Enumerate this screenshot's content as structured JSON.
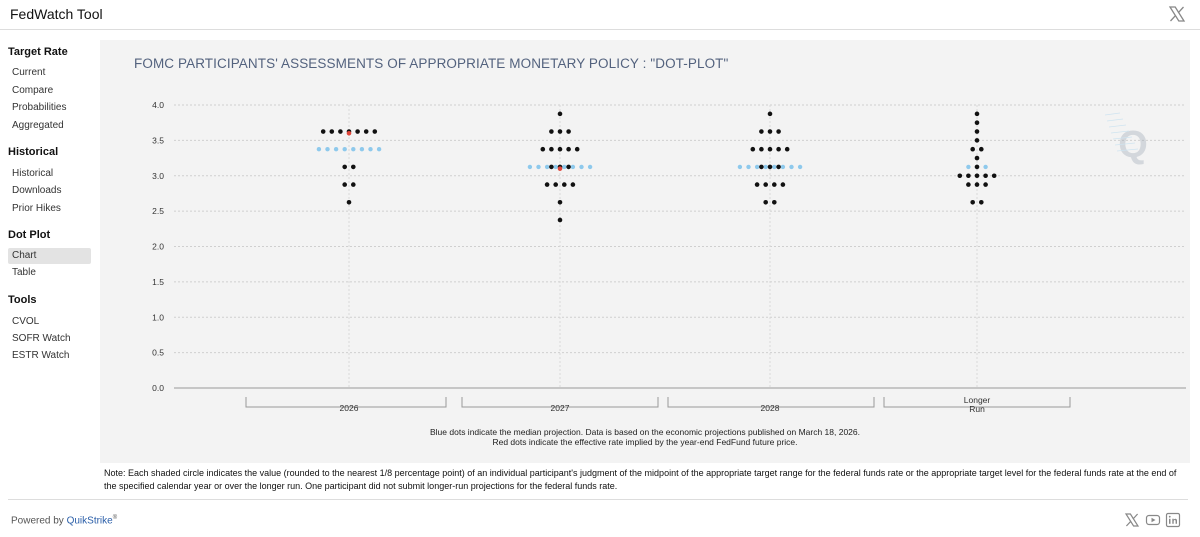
{
  "app": {
    "title": "FedWatch Tool"
  },
  "sidebar": {
    "sections": [
      {
        "heading": "Target Rate",
        "items": [
          "Current",
          "Compare",
          "Probabilities",
          "Aggregated"
        ]
      },
      {
        "heading": "Historical",
        "items": [
          "Historical",
          "Downloads",
          "Prior Hikes"
        ]
      },
      {
        "heading": "Dot Plot",
        "items": [
          "Chart",
          "Table"
        ]
      },
      {
        "heading": "Tools",
        "items": [
          "CVOL",
          "SOFR Watch",
          "ESTR Watch"
        ]
      }
    ],
    "active_item": "Chart"
  },
  "chart": {
    "caption_line1": "Blue dots indicate the median projection. Data is based on the economic projections published on March 18, 2026.",
    "caption_line2": "Red dots indicate the effective rate implied by the year-end FedFund future price."
  },
  "chart_data": {
    "type": "scatter",
    "title": "FOMC PARTICIPANTS' ASSESSMENTS OF APPROPRIATE MONETARY POLICY : \"DOT-PLOT\"",
    "categories": [
      "2026",
      "2027",
      "2028",
      "Longer Run"
    ],
    "ylim": [
      0,
      4
    ],
    "yticks": [
      "0.0",
      "0.5",
      "1.0",
      "1.5",
      "2.0",
      "2.5",
      "3.0",
      "3.5",
      "4.0"
    ],
    "grid": true,
    "participant_dots": [
      {
        "category": "2026",
        "levels": [
          {
            "rate": 3.625,
            "count": 7
          },
          {
            "rate": 3.125,
            "count": 2
          },
          {
            "rate": 2.875,
            "count": 2
          },
          {
            "rate": 2.625,
            "count": 1
          }
        ]
      },
      {
        "category": "2027",
        "levels": [
          {
            "rate": 3.875,
            "count": 1
          },
          {
            "rate": 3.625,
            "count": 3
          },
          {
            "rate": 3.375,
            "count": 5
          },
          {
            "rate": 3.125,
            "count": 3
          },
          {
            "rate": 2.875,
            "count": 4
          },
          {
            "rate": 2.625,
            "count": 1
          },
          {
            "rate": 2.375,
            "count": 1
          }
        ]
      },
      {
        "category": "2028",
        "levels": [
          {
            "rate": 3.875,
            "count": 1
          },
          {
            "rate": 3.625,
            "count": 3
          },
          {
            "rate": 3.375,
            "count": 5
          },
          {
            "rate": 3.125,
            "count": 3
          },
          {
            "rate": 2.875,
            "count": 4
          },
          {
            "rate": 2.625,
            "count": 2
          }
        ]
      },
      {
        "category": "Longer Run",
        "levels": [
          {
            "rate": 3.875,
            "count": 1
          },
          {
            "rate": 3.75,
            "count": 1
          },
          {
            "rate": 3.625,
            "count": 1
          },
          {
            "rate": 3.5,
            "count": 1
          },
          {
            "rate": 3.375,
            "count": 2
          },
          {
            "rate": 3.25,
            "count": 1
          },
          {
            "rate": 3.125,
            "count": 1
          },
          {
            "rate": 3.0,
            "count": 5
          },
          {
            "rate": 2.875,
            "count": 3
          },
          {
            "rate": 2.625,
            "count": 2
          }
        ]
      }
    ],
    "median_projection": [
      {
        "category": "2026",
        "rate": 3.375,
        "count": 8
      },
      {
        "category": "2027",
        "rate": 3.125,
        "count": 8
      },
      {
        "category": "2028",
        "rate": 3.125,
        "count": 8
      },
      {
        "category": "Longer Run",
        "rate": 3.125,
        "count": 3
      }
    ],
    "implied_rate": [
      {
        "category": "2026",
        "rate": 3.6
      },
      {
        "category": "2027",
        "rate": 3.1
      }
    ],
    "colors": {
      "participant": "#111111",
      "median": "#8ec9ec",
      "implied": "#e0463a",
      "title": "#53627e"
    }
  },
  "note": "Note: Each shaded circle indicates the value (rounded to the nearest 1/8 percentage point) of an individual participant's judgment of the midpoint of the appropriate target range for the federal funds rate or the appropriate target level for the federal funds rate at the end of the specified calendar year or over the longer run. One participant did not submit longer-run projections for the federal funds rate.",
  "footer": {
    "powered_by": "Powered by",
    "brand": "QuikStrike",
    "reg": "®"
  },
  "icons": {
    "top_close": "x-logo-icon",
    "social": [
      "x-logo-icon",
      "youtube-icon",
      "linkedin-icon"
    ]
  }
}
